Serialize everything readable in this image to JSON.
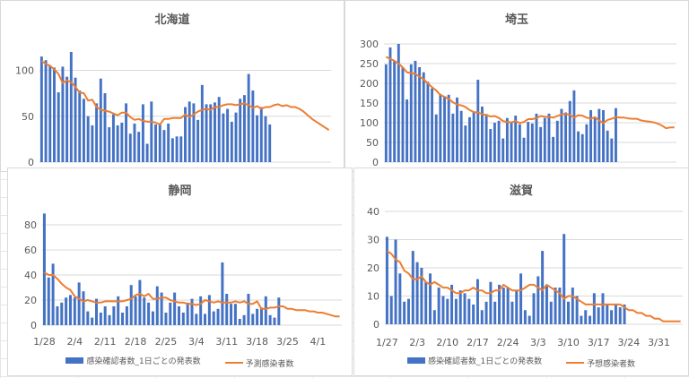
{
  "colors": {
    "bar": "#4472c4",
    "line": "#ed7d31",
    "grid": "#d9d9d9",
    "text": "#595959"
  },
  "chart_data": [
    {
      "id": "hokkaido",
      "type": "bar+line",
      "title": "北海道",
      "ylim": [
        0,
        120
      ],
      "yticks": [
        0,
        50,
        100
      ],
      "grid": true,
      "xticklabels": [],
      "bars": [
        115,
        111,
        105,
        103,
        76,
        104,
        93,
        120,
        92,
        78,
        69,
        50,
        40,
        64,
        91,
        75,
        38,
        52,
        40,
        43,
        64,
        31,
        42,
        33,
        63,
        20,
        66,
        41,
        42,
        35,
        42,
        26,
        28,
        28,
        60,
        66,
        64,
        46,
        84,
        63,
        63,
        65,
        71,
        53,
        58,
        44,
        54,
        69,
        73,
        96,
        78,
        51,
        60,
        50,
        41
      ],
      "line": [
        110,
        107,
        105,
        101,
        96,
        86,
        89,
        87,
        82,
        76,
        75,
        67,
        68,
        60,
        57,
        56,
        55,
        53,
        51,
        54,
        54,
        49,
        46,
        47,
        45,
        44,
        44,
        43,
        41,
        47,
        47,
        48,
        48,
        48,
        52,
        49,
        52,
        55,
        57,
        58,
        57,
        60,
        60,
        62,
        63,
        63,
        62,
        63,
        64,
        62,
        59,
        61,
        58,
        60,
        60,
        62,
        63,
        61,
        62,
        60,
        60,
        58,
        55,
        51,
        47,
        44,
        41,
        38,
        35
      ]
    },
    {
      "id": "saitama",
      "type": "bar+line",
      "title": "埼玉",
      "ylim": [
        0,
        300
      ],
      "yticks": [
        0,
        50,
        100,
        150,
        200,
        250,
        300
      ],
      "grid": true,
      "xticklabels": [],
      "bars": [
        248,
        291,
        257,
        300,
        241,
        159,
        248,
        257,
        241,
        228,
        204,
        187,
        121,
        173,
        166,
        171,
        123,
        164,
        130,
        93,
        114,
        128,
        209,
        141,
        122,
        84,
        100,
        105,
        60,
        112,
        102,
        118,
        96,
        62,
        102,
        98,
        123,
        89,
        112,
        123,
        64,
        105,
        135,
        126,
        155,
        182,
        78,
        71,
        96,
        132,
        112,
        135,
        132,
        80,
        60,
        137
      ],
      "line": [
        267,
        262,
        257,
        250,
        240,
        228,
        226,
        224,
        217,
        210,
        200,
        190,
        182,
        170,
        166,
        160,
        152,
        146,
        144,
        140,
        132,
        127,
        126,
        122,
        119,
        116,
        117,
        112,
        104,
        102,
        101,
        104,
        99,
        102,
        109,
        109,
        112,
        117,
        115,
        115,
        113,
        117,
        121,
        122,
        120,
        113,
        119,
        118,
        113,
        110,
        114,
        106,
        99,
        107,
        110,
        114,
        113,
        113,
        111,
        110,
        110,
        106,
        104,
        103,
        101,
        98,
        93,
        86,
        88,
        88
      ]
    },
    {
      "id": "shizuoka",
      "type": "bar+line",
      "title": "静岡",
      "ylim": [
        0,
        80
      ],
      "yticks": [
        0,
        20,
        40,
        60,
        80
      ],
      "grid": true,
      "xticklabels": [
        "1/28",
        "2/4",
        "2/11",
        "2/18",
        "2/25",
        "3/4",
        "3/11",
        "3/18",
        "3/25",
        "4/1"
      ],
      "legend": {
        "position": "bottom",
        "bar": "感染確認者数_1日ごとの発表数",
        "line": "予測感染者数"
      },
      "bars": [
        89,
        38,
        49,
        15,
        18,
        22,
        24,
        22,
        34,
        27,
        11,
        6,
        21,
        10,
        15,
        8,
        15,
        23,
        10,
        15,
        32,
        23,
        36,
        22,
        18,
        11,
        31,
        26,
        10,
        18,
        26,
        15,
        10,
        18,
        21,
        9,
        23,
        9,
        24,
        11,
        13,
        50,
        25,
        17,
        17,
        5,
        8,
        25,
        9,
        13,
        14,
        23,
        8,
        6,
        22
      ],
      "line": [
        42,
        40,
        40,
        37,
        33,
        30,
        28,
        23,
        21,
        19,
        20,
        19,
        18,
        18,
        19,
        19,
        19,
        19,
        19,
        20,
        21,
        24,
        25,
        23,
        25,
        21,
        21,
        22,
        22,
        20,
        19,
        18,
        18,
        17,
        17,
        16,
        17,
        20,
        19,
        18,
        19,
        18,
        18,
        18,
        19,
        18,
        19,
        17,
        17,
        19,
        13,
        13,
        14,
        14,
        15,
        15,
        13,
        13,
        12,
        12,
        12,
        11,
        11,
        10,
        10,
        9,
        8,
        7,
        7
      ]
    },
    {
      "id": "shiga",
      "type": "bar+line",
      "title": "滋賀",
      "ylim": [
        0,
        40
      ],
      "yticks": [
        0,
        10,
        20,
        30,
        40
      ],
      "grid": true,
      "xticklabels": [
        "1/27",
        "2/3",
        "2/10",
        "2/17",
        "2/24",
        "3/3",
        "3/10",
        "3/17",
        "3/24",
        "3/31"
      ],
      "legend": {
        "position": "bottom",
        "bar": "感染確認者数_1日ごとの発表数",
        "line": "予想感染者数"
      },
      "bars": [
        31,
        10,
        30,
        18,
        8,
        9,
        26,
        22,
        20,
        15,
        18,
        5,
        13,
        10,
        9,
        14,
        9,
        12,
        11,
        9,
        7,
        16,
        5,
        8,
        15,
        8,
        14,
        13,
        13,
        8,
        12,
        18,
        5,
        3,
        11,
        17,
        26,
        14,
        8,
        13,
        13,
        32,
        8,
        13,
        10,
        3,
        5,
        3,
        11,
        6,
        11,
        7,
        5,
        7,
        6,
        7
      ],
      "line": [
        26,
        25,
        23,
        22,
        19,
        18,
        16,
        16,
        17,
        15,
        14,
        15,
        14,
        13,
        13,
        12,
        11,
        11,
        12,
        12,
        13,
        12,
        12,
        11,
        11,
        12,
        12,
        14,
        13,
        12,
        12,
        12,
        13,
        14,
        14,
        13,
        12,
        14,
        13,
        12,
        11,
        9,
        10,
        10,
        9,
        8,
        7,
        7,
        7,
        7,
        7,
        7,
        7,
        7,
        7,
        6,
        5,
        5,
        4,
        4,
        3,
        3,
        2,
        2,
        1,
        1,
        1,
        1,
        1
      ]
    }
  ]
}
